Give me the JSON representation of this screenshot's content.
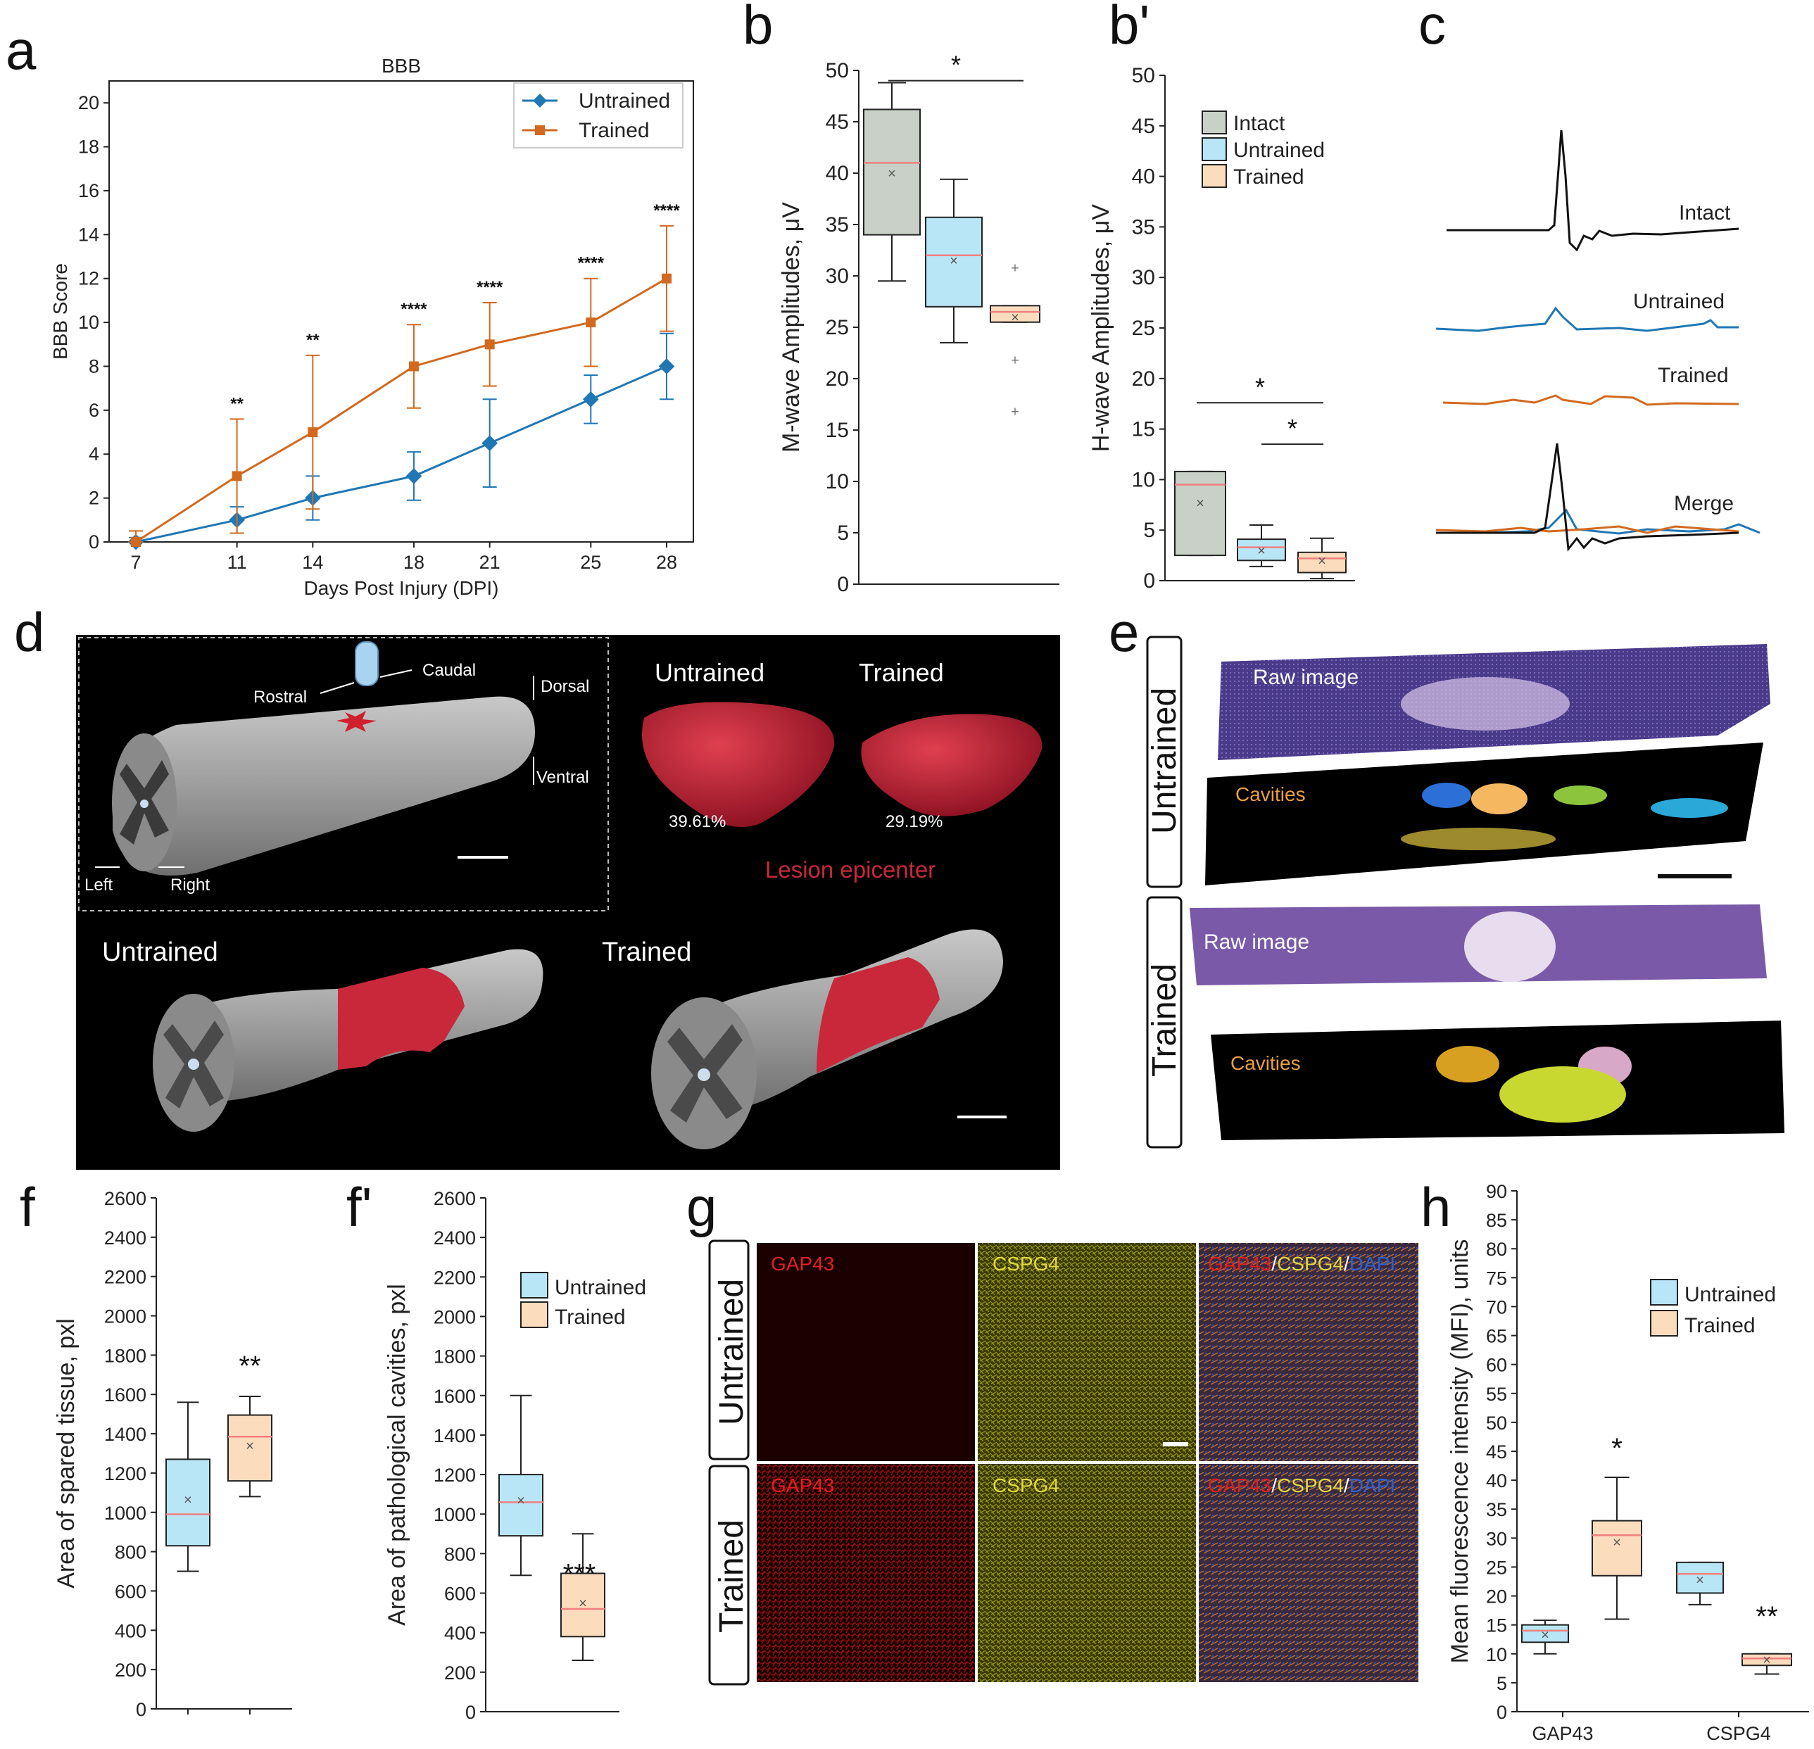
{
  "colors": {
    "untrained": "#1f77b4",
    "trained": "#d2691e",
    "box_intact": "#c8d0c7",
    "box_untrained": "#b9e6f7",
    "box_trained": "#fbdcbd",
    "median": "#f08080",
    "lesion": "#c8283a"
  },
  "panel_labels": {
    "a": "a",
    "b": "b",
    "bp": "b'",
    "c": "c",
    "d": "d",
    "e": "e",
    "f": "f",
    "fp": "f'",
    "g": "g",
    "h": "h"
  },
  "chart_data": [
    {
      "id": "a",
      "type": "line",
      "title": "BBB",
      "xlabel": "Days Post Injury (DPI)",
      "ylabel": "BBB Score",
      "categories": [
        "7",
        "11",
        "14",
        "18",
        "21",
        "25",
        "28"
      ],
      "ylim": [
        0,
        21
      ],
      "yticks": [
        "0",
        "2",
        "4",
        "6",
        "8",
        "10",
        "12",
        "14",
        "16",
        "18",
        "20"
      ],
      "legend": {
        "position": "top-right",
        "entries": [
          "Untrained",
          "Trained"
        ]
      },
      "series": [
        {
          "name": "Untrained",
          "values": [
            0,
            1,
            2,
            3,
            4.5,
            6.5,
            8
          ],
          "err": [
            0.2,
            0.6,
            1,
            1.1,
            2,
            1.1,
            1.5
          ]
        },
        {
          "name": "Trained",
          "values": [
            0,
            3,
            5,
            8,
            9,
            10,
            12
          ],
          "err": [
            0.5,
            2.6,
            3.5,
            1.9,
            1.9,
            2,
            2.4
          ]
        }
      ],
      "annotations": [
        "",
        "**",
        "**",
        "****",
        "****",
        "****",
        "****"
      ]
    },
    {
      "id": "b",
      "type": "box",
      "ylabel": "M-wave Amplitudes, μV",
      "ylim": [
        0,
        50
      ],
      "yticks": [
        "0",
        "5",
        "10",
        "15",
        "20",
        "25",
        "30",
        "35",
        "40",
        "45",
        "50"
      ],
      "boxes": [
        {
          "name": "Intact",
          "min": 29.5,
          "q1": 34,
          "median": 41,
          "q3": 46.2,
          "max": 48.8,
          "mean": 40,
          "outliers": []
        },
        {
          "name": "Untrained",
          "min": 23.5,
          "q1": 27,
          "median": 32,
          "q3": 35.7,
          "max": 39.4,
          "mean": 31.5,
          "outliers": []
        },
        {
          "name": "Trained",
          "min": 25.5,
          "q1": 25.5,
          "median": 26.5,
          "q3": 27.1,
          "max": 27.1,
          "mean": 26,
          "outliers": [
            30.8,
            21.8,
            16.8
          ]
        }
      ],
      "significance": [
        {
          "from": 0,
          "to": 2,
          "y": 49,
          "label": "*"
        }
      ]
    },
    {
      "id": "bp",
      "type": "box",
      "ylabel": "H-wave Amplitudes, μV",
      "ylim": [
        0,
        50
      ],
      "yticks": [
        "0",
        "5",
        "10",
        "15",
        "20",
        "25",
        "30",
        "35",
        "40",
        "45",
        "50"
      ],
      "legend": {
        "position": "top-left",
        "entries": [
          "Intact",
          "Untrained",
          "Trained"
        ]
      },
      "boxes": [
        {
          "name": "Intact",
          "min": 2.5,
          "q1": 2.5,
          "median": 9.5,
          "q3": 10.8,
          "max": 10.8,
          "mean": 7.7,
          "outliers": []
        },
        {
          "name": "Untrained",
          "min": 1.4,
          "q1": 2,
          "median": 3.3,
          "q3": 4.1,
          "max": 5.5,
          "mean": 3,
          "outliers": []
        },
        {
          "name": "Trained",
          "min": 0.2,
          "q1": 0.8,
          "median": 2.2,
          "q3": 2.8,
          "max": 4.2,
          "mean": 2,
          "outliers": []
        }
      ],
      "significance": [
        {
          "from": 0,
          "to": 2,
          "y": 17.6,
          "label": "*"
        },
        {
          "from": 1,
          "to": 2,
          "y": 13.5,
          "label": "*"
        }
      ]
    },
    {
      "id": "f",
      "type": "box",
      "ylabel": "Area of spared tissue, pxl",
      "ylim": [
        0,
        2600
      ],
      "yticks": [
        "0",
        "200",
        "400",
        "600",
        "800",
        "1000",
        "1200",
        "1400",
        "1600",
        "1800",
        "2000",
        "2200",
        "2400",
        "2600"
      ],
      "boxes": [
        {
          "name": "Untrained",
          "min": 700,
          "q1": 830,
          "median": 990,
          "q3": 1270,
          "max": 1560,
          "mean": 1065,
          "outliers": []
        },
        {
          "name": "Trained",
          "min": 1080,
          "q1": 1160,
          "median": 1385,
          "q3": 1495,
          "max": 1590,
          "mean": 1340,
          "outliers": []
        }
      ],
      "annotations": [
        "",
        "**"
      ]
    },
    {
      "id": "fp",
      "type": "box",
      "ylabel": "Area of pathological cavities, pxl",
      "ylim": [
        0,
        2600
      ],
      "yticks": [
        "0",
        "200",
        "400",
        "600",
        "800",
        "1000",
        "1200",
        "1400",
        "1600",
        "1800",
        "2000",
        "2200",
        "2400",
        "2600"
      ],
      "legend": {
        "position": "top-right",
        "entries": [
          "Untrained",
          "Trained"
        ]
      },
      "boxes": [
        {
          "name": "Untrained",
          "min": 690,
          "q1": 890,
          "median": 1060,
          "q3": 1200,
          "max": 1600,
          "mean": 1070,
          "outliers": []
        },
        {
          "name": "Trained",
          "min": 260,
          "q1": 380,
          "median": 520,
          "q3": 700,
          "max": 900,
          "mean": 550,
          "outliers": []
        }
      ],
      "annotations": [
        "",
        "***"
      ]
    },
    {
      "id": "h",
      "type": "box",
      "ylabel": "Mean fluorescence intensity (MFI), units",
      "ylim": [
        0,
        90
      ],
      "yticks": [
        "0",
        "5",
        "10",
        "15",
        "20",
        "25",
        "30",
        "35",
        "40",
        "45",
        "50",
        "55",
        "60",
        "65",
        "70",
        "75",
        "80",
        "85",
        "90"
      ],
      "categories": [
        "GAP43",
        "CSPG4"
      ],
      "legend": {
        "position": "top-right",
        "entries": [
          "Untrained",
          "Trained"
        ]
      },
      "boxes": [
        {
          "name": "GAP43 Untrained",
          "min": 10,
          "q1": 12,
          "median": 14,
          "q3": 15,
          "max": 15.8,
          "mean": 13.3,
          "outliers": []
        },
        {
          "name": "GAP43 Trained",
          "min": 16,
          "q1": 23.5,
          "median": 30.5,
          "q3": 33,
          "max": 40.5,
          "mean": 29.3,
          "outliers": []
        },
        {
          "name": "CSPG4 Untrained",
          "min": 18.5,
          "q1": 20.5,
          "median": 23.8,
          "q3": 25.8,
          "max": 25.8,
          "mean": 22.8,
          "outliers": []
        },
        {
          "name": "CSPG4 Trained",
          "min": 6.5,
          "q1": 8,
          "median": 9.2,
          "q3": 10,
          "max": 10,
          "mean": 9,
          "outliers": []
        }
      ],
      "annotations": [
        "",
        "*",
        "",
        "**"
      ]
    }
  ],
  "panel_c": {
    "traces": [
      "Intact",
      "Untrained",
      "Trained",
      "Merge"
    ]
  },
  "panel_d": {
    "directions": {
      "rostral": "Rostral",
      "caudal": "Caudal",
      "dorsal": "Dorsal",
      "ventral": "Ventral",
      "left": "Left",
      "right": "Right"
    },
    "lesions": [
      {
        "label": "Untrained",
        "pct": "39.61%"
      },
      {
        "label": "Trained",
        "pct": "29.19%"
      }
    ],
    "lesion_caption": "Lesion epicenter",
    "bottom_labels": [
      "Untrained",
      "Trained"
    ]
  },
  "panel_e": {
    "rows": [
      {
        "group": "Untrained",
        "raw": "Raw image",
        "cav": "Cavities"
      },
      {
        "group": "Trained",
        "raw": "Raw image",
        "cav": "Cavities"
      }
    ]
  },
  "panel_g": {
    "rows": [
      "Untrained",
      "Trained"
    ],
    "cols": {
      "gap": "GAP43",
      "cspg": "CSPG4",
      "merge_gap": "GAP43",
      "merge_sep1": "/",
      "merge_cspg": "CSPG4",
      "merge_sep2": "/",
      "merge_dapi": "DAPI"
    }
  }
}
